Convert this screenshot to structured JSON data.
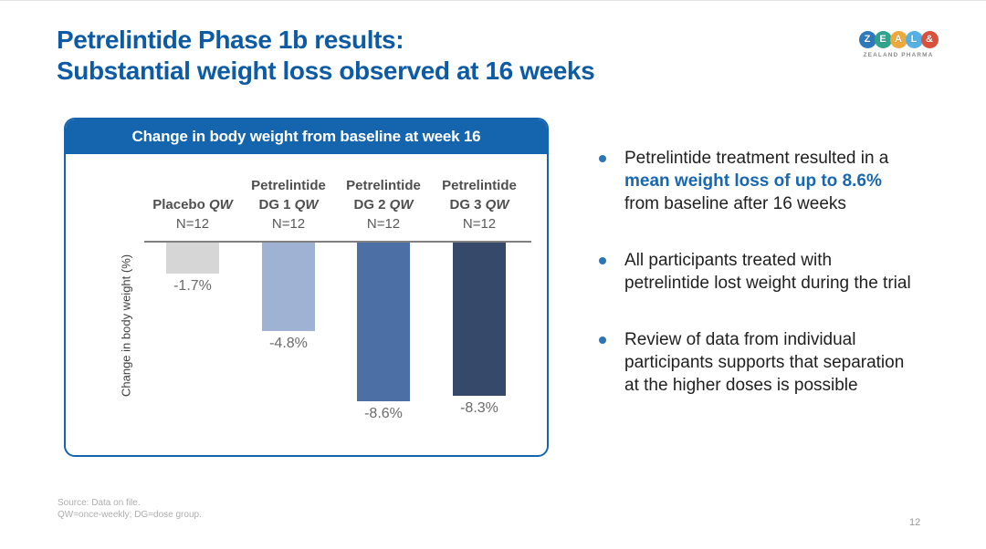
{
  "slide": {
    "title_line1": "Petrelintide Phase 1b results:",
    "title_line2": "Substantial weight loss observed at 16 weeks",
    "footer_line1": "Source: Data on file.",
    "footer_line2": "QW=once-weekly; DG=dose group.",
    "page_number": "12"
  },
  "logo": {
    "letters": [
      {
        "char": "Z",
        "color": "#2e79be"
      },
      {
        "char": "E",
        "color": "#2fa38c"
      },
      {
        "char": "A",
        "color": "#eda93c"
      },
      {
        "char": "L",
        "color": "#55b0e3"
      },
      {
        "char": "&",
        "color": "#d9503c"
      }
    ],
    "wordmark": "ZEALAND PHARMA"
  },
  "panel": {
    "header": "Change in body weight from baseline at week 16"
  },
  "chart_data": {
    "type": "bar",
    "title": "Change in body weight from baseline at week 16",
    "ylabel": "Change in body weight (%)",
    "categories": [
      "Placebo QW",
      "Petrelintide DG 1 QW",
      "Petrelintide DG 2 QW",
      "Petrelintide DG 3 QW"
    ],
    "group_sizes": [
      "N=12",
      "N=12",
      "N=12",
      "N=12"
    ],
    "values": [
      -1.7,
      -4.8,
      -8.6,
      -8.3
    ],
    "value_labels": [
      "-1.7%",
      "-4.8%",
      "-8.6%",
      "-8.3%"
    ],
    "bar_colors": [
      "#d6d6d6",
      "#9fb2d4",
      "#4c6fa5",
      "#37496a"
    ],
    "ylim": [
      -10,
      0
    ],
    "legend": "none",
    "grid": false,
    "columns": [
      {
        "top": "",
        "dose": "Placebo",
        "qw": "QW",
        "n": "N=12"
      },
      {
        "top": "Petrelintide",
        "dose": "DG 1",
        "qw": "QW",
        "n": "N=12"
      },
      {
        "top": "Petrelintide",
        "dose": "DG 2",
        "qw": "QW",
        "n": "N=12"
      },
      {
        "top": "Petrelintide",
        "dose": "DG 3",
        "qw": "QW",
        "n": "N=12"
      }
    ]
  },
  "bullets": [
    {
      "pre": "Petrelintide treatment resulted in a ",
      "highlight": "mean weight loss of up to 8.6%",
      "post": "from baseline after 16 weeks"
    },
    {
      "pre": "All participants treated with petrelintide lost weight during the trial",
      "highlight": "",
      "post": ""
    },
    {
      "pre": "Review of data from individual participants supports that separation at the higher doses is possible",
      "highlight": "",
      "post": ""
    }
  ],
  "colors": {
    "title_blue": "#0d5ba5",
    "accent_blue": "#1767b2",
    "panel_blue": "#1565ae",
    "baseline_gray": "#808080"
  }
}
